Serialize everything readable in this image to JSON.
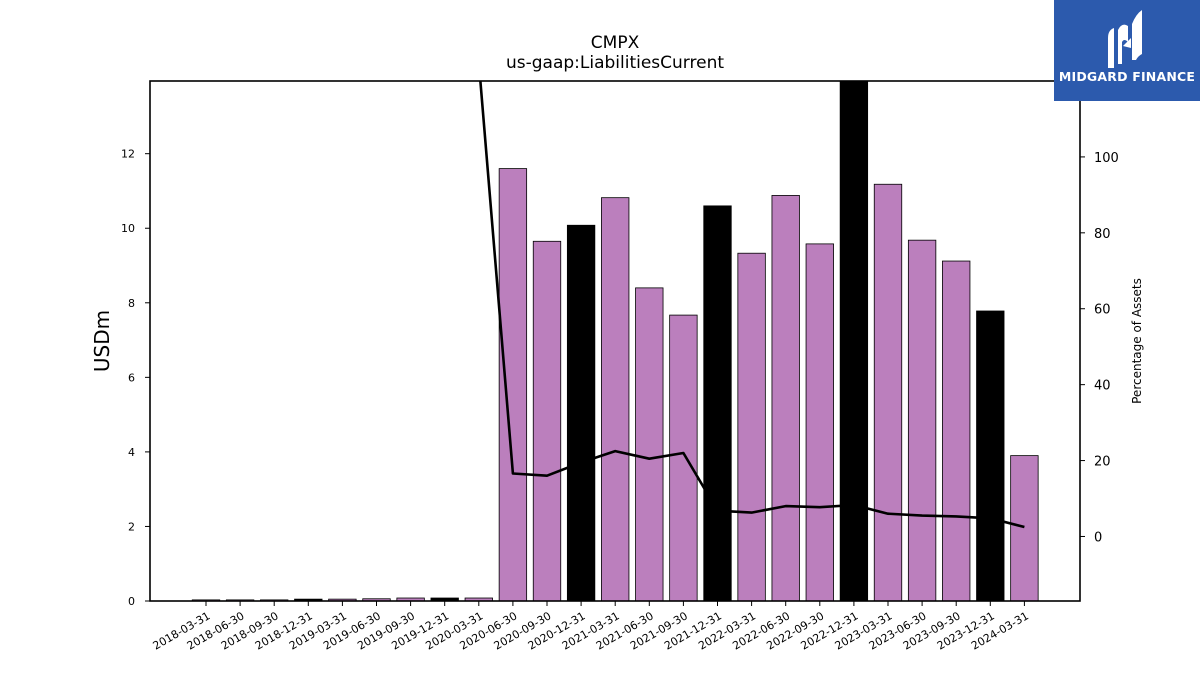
{
  "chart_data": {
    "type": "bar",
    "title": "CMPX",
    "subtitle": "us-gaap:LiabilitiesCurrent",
    "ylabel": "USDm",
    "y2label": "Percentage of Assets",
    "ylim": [
      0,
      13.95
    ],
    "y2lim": [
      -17,
      120
    ],
    "yticks": [
      0,
      2,
      4,
      6,
      8,
      10,
      12
    ],
    "y2ticks": [
      0,
      20,
      40,
      60,
      80,
      100
    ],
    "categories": [
      "2018-03-31",
      "2018-06-30",
      "2018-09-30",
      "2018-12-31",
      "2019-03-31",
      "2019-06-30",
      "2019-09-30",
      "2019-12-31",
      "2020-03-31",
      "2020-06-30",
      "2020-09-30",
      "2020-12-31",
      "2021-03-31",
      "2021-06-30",
      "2021-09-30",
      "2021-12-31",
      "2022-03-31",
      "2022-06-30",
      "2022-09-30",
      "2022-12-31",
      "2023-03-31",
      "2023-06-30",
      "2023-09-30",
      "2023-12-31",
      "2024-03-31"
    ],
    "series": [
      {
        "type": "bar",
        "values": [
          0.03,
          0.03,
          0.03,
          0.05,
          0.05,
          0.06,
          0.08,
          0.08,
          0.08,
          11.6,
          9.65,
          10.08,
          10.82,
          8.4,
          7.67,
          10.6,
          9.33,
          10.88,
          9.58,
          14.2,
          11.18,
          9.68,
          9.12,
          7.78,
          3.9
        ],
        "colors": [
          "#bb7fbd",
          "#bb7fbd",
          "#bb7fbd",
          "#000000",
          "#bb7fbd",
          "#bb7fbd",
          "#bb7fbd",
          "#000000",
          "#bb7fbd",
          "#bb7fbd",
          "#bb7fbd",
          "#000000",
          "#bb7fbd",
          "#bb7fbd",
          "#bb7fbd",
          "#000000",
          "#bb7fbd",
          "#bb7fbd",
          "#bb7fbd",
          "#000000",
          "#bb7fbd",
          "#bb7fbd",
          "#bb7fbd",
          "#000000",
          "#bb7fbd"
        ]
      },
      {
        "type": "line",
        "axis": "right",
        "color": "#000000",
        "values": [
          null,
          null,
          null,
          null,
          null,
          null,
          null,
          null,
          125,
          16.6,
          16,
          19.5,
          22.5,
          20.5,
          22,
          6.8,
          6.3,
          8,
          7.7,
          8.3,
          6,
          5.5,
          5.3,
          4.8,
          2.5
        ]
      }
    ]
  },
  "brand": {
    "name": "MIDGARD FINANCE",
    "color": "#2c5aad"
  }
}
